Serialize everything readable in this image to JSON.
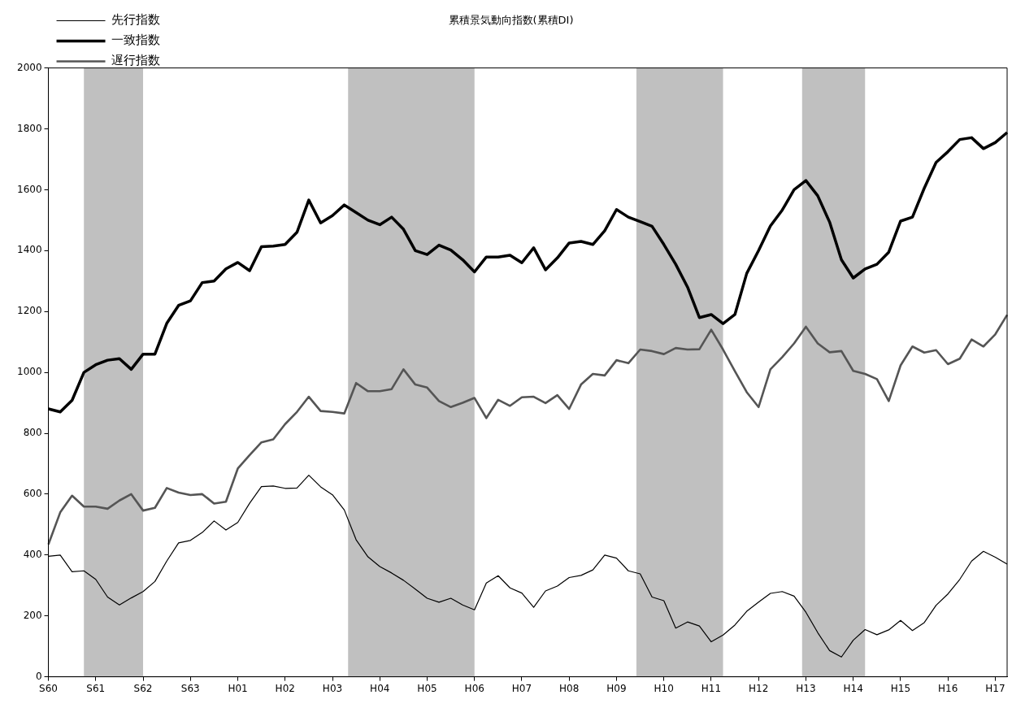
{
  "chart_data": {
    "type": "line",
    "title": "累積景気動向指数(累積DI)",
    "categories": [
      "S60",
      null,
      null,
      null,
      "S61",
      null,
      null,
      null,
      "S62",
      null,
      null,
      null,
      "S63",
      null,
      null,
      null,
      "H01",
      null,
      null,
      null,
      "H02",
      null,
      null,
      null,
      "H03",
      null,
      null,
      null,
      "H04",
      null,
      null,
      null,
      "H05",
      null,
      null,
      null,
      "H06",
      null,
      null,
      null,
      "H07",
      null,
      null,
      null,
      "H08",
      null,
      null,
      null,
      "H09",
      null,
      null,
      null,
      "H10",
      null,
      null,
      null,
      "H11",
      null,
      null,
      null,
      "H12",
      null,
      null,
      null,
      "H13",
      null,
      null,
      null,
      "H14",
      null,
      null,
      null,
      "H15",
      null,
      null,
      null,
      "H16",
      null,
      null,
      null,
      "H17",
      null
    ],
    "ylim": [
      0,
      2000
    ],
    "yticks": [
      0,
      200,
      400,
      600,
      800,
      1000,
      1200,
      1400,
      1600,
      1800,
      2000
    ],
    "legend": "top left",
    "series": [
      {
        "name": "先行指数",
        "color": "#000000",
        "values": [
          396,
          400,
          345,
          348,
          320,
          262,
          236,
          259,
          280,
          313,
          380,
          440,
          448,
          474,
          512,
          482,
          507,
          570,
          625,
          627,
          619,
          620,
          662,
          624,
          598,
          548,
          450,
          394,
          362,
          341,
          317,
          288,
          258,
          245,
          258,
          236,
          220,
          308,
          332,
          292,
          275,
          228,
          282,
          298,
          326,
          333,
          351,
          400,
          390,
          348,
          338,
          262,
          250,
          160,
          180,
          167,
          115,
          137,
          170,
          215,
          245,
          274,
          280,
          265,
          212,
          145,
          86,
          65,
          120,
          155,
          138,
          154,
          185,
          152,
          178,
          235,
          272,
          320,
          380,
          412,
          393,
          370
        ]
      },
      {
        "name": "一致指数",
        "color": "#000000",
        "values": [
          880,
          870,
          908,
          1000,
          1025,
          1040,
          1045,
          1010,
          1060,
          1060,
          1161,
          1220,
          1235,
          1295,
          1300,
          1340,
          1361,
          1334,
          1413,
          1415,
          1420,
          1460,
          1566,
          1491,
          1515,
          1550,
          1525,
          1500,
          1485,
          1510,
          1470,
          1400,
          1387,
          1418,
          1402,
          1370,
          1330,
          1379,
          1379,
          1385,
          1360,
          1409,
          1337,
          1376,
          1425,
          1430,
          1420,
          1465,
          1535,
          1510,
          1495,
          1480,
          1420,
          1355,
          1280,
          1180,
          1190,
          1160,
          1190,
          1325,
          1400,
          1481,
          1533,
          1600,
          1630,
          1580,
          1494,
          1370,
          1310,
          1340,
          1355,
          1395,
          1497,
          1510,
          1605,
          1690,
          1725,
          1765,
          1771,
          1735,
          1755,
          1788
        ]
      },
      {
        "name": "遅行指数",
        "color": "#555555",
        "values": [
          435,
          540,
          595,
          559,
          559,
          552,
          579,
          600,
          546,
          555,
          620,
          605,
          597,
          600,
          569,
          575,
          684,
          728,
          770,
          780,
          830,
          870,
          920,
          873,
          870,
          865,
          965,
          938,
          938,
          945,
          1010,
          960,
          950,
          906,
          886,
          900,
          916,
          850,
          910,
          890,
          918,
          920,
          899,
          925,
          880,
          960,
          995,
          990,
          1040,
          1030,
          1075,
          1070,
          1060,
          1080,
          1075,
          1076,
          1140,
          1075,
          1004,
          935,
          886,
          1010,
          1050,
          1095,
          1150,
          1095,
          1066,
          1070,
          1005,
          995,
          978,
          906,
          1023,
          1085,
          1065,
          1073,
          1027,
          1045,
          1108,
          1085,
          1125,
          1189
        ]
      }
    ]
  }
}
